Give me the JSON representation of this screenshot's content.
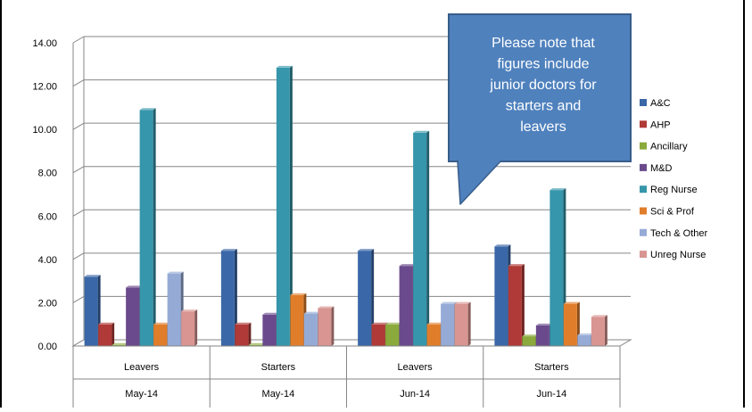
{
  "chart_data": {
    "type": "bar",
    "title": "",
    "xlabel": "",
    "ylabel": "",
    "ylim": [
      0,
      14
    ],
    "y_ticks": [
      "0.00",
      "2.00",
      "4.00",
      "6.00",
      "8.00",
      "10.00",
      "12.00",
      "14.00"
    ],
    "y_tick_values": [
      0,
      2,
      4,
      6,
      8,
      10,
      12,
      14
    ],
    "grid": true,
    "three_d": true,
    "legend_position": "right",
    "categories": [
      {
        "group": "Leavers",
        "period": "May-14"
      },
      {
        "group": "Starters",
        "period": "May-14"
      },
      {
        "group": "Leavers",
        "period": "Jun-14"
      },
      {
        "group": "Starters",
        "period": "Jun-14"
      }
    ],
    "series": [
      {
        "name": "A&C",
        "color": "#3a67a7",
        "values": [
          3.2,
          4.4,
          4.4,
          4.6
        ]
      },
      {
        "name": "AHP",
        "color": "#b03a37",
        "values": [
          1.0,
          1.0,
          1.0,
          3.7
        ]
      },
      {
        "name": "Ancillary",
        "color": "#8aaa3c",
        "values": [
          0.05,
          0.05,
          1.0,
          0.45
        ]
      },
      {
        "name": "M&D",
        "color": "#6a4a8c",
        "values": [
          2.7,
          1.45,
          3.7,
          0.95
        ]
      },
      {
        "name": "Reg Nurse",
        "color": "#3696ab",
        "values": [
          10.9,
          12.85,
          9.85,
          7.2
        ]
      },
      {
        "name": "Sci & Prof",
        "color": "#e07d2b",
        "values": [
          1.0,
          2.35,
          1.0,
          1.95
        ]
      },
      {
        "name": "Tech & Other",
        "color": "#95abd6",
        "values": [
          3.35,
          1.5,
          1.95,
          0.5
        ]
      },
      {
        "name": "Unreg Nurse",
        "color": "#d89591",
        "values": [
          1.6,
          1.75,
          1.95,
          1.35
        ]
      }
    ],
    "annotation": {
      "text_lines": [
        "Please note that",
        "figures include",
        "junior doctors for",
        "starters and",
        "leavers"
      ],
      "fill": "#4f81bd",
      "border": "#385d8a"
    }
  }
}
